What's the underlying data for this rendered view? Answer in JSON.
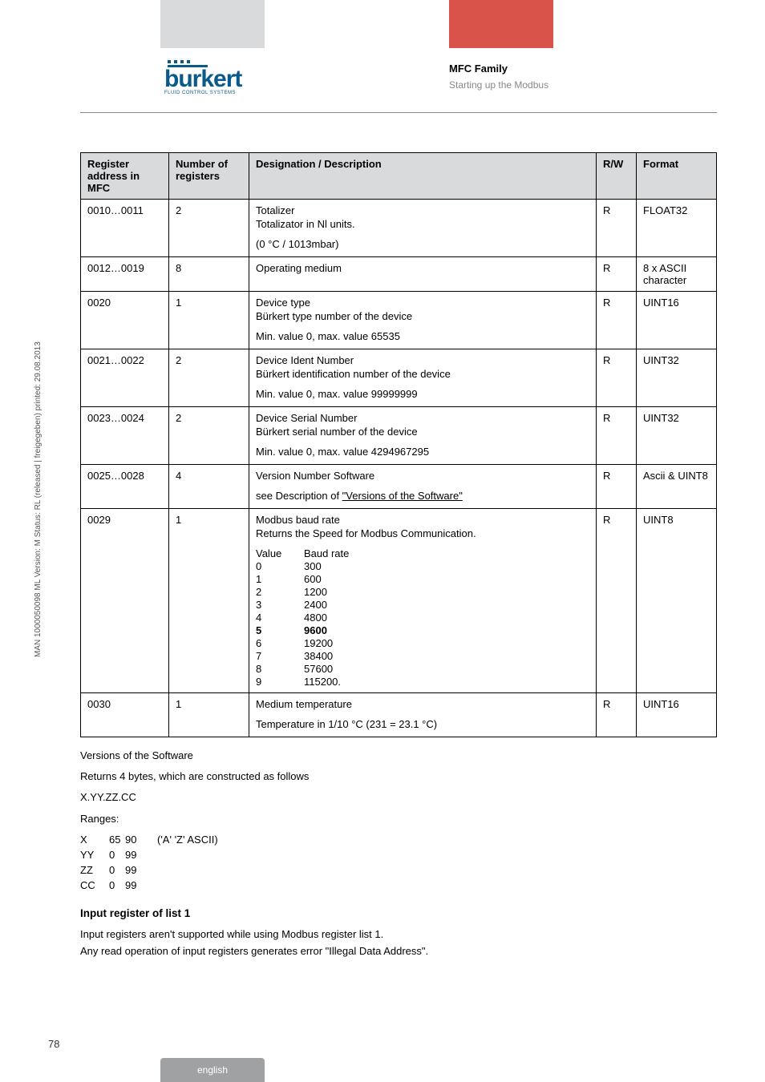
{
  "header": {
    "logo_text": "burkert",
    "logo_sub": "FLUID CONTROL SYSTEMS",
    "title": "MFC Family",
    "subtitle": "Starting up the Modbus"
  },
  "table": {
    "columns": [
      "Register address in MFC",
      "Number of registers",
      "Designation / Description",
      "R/W",
      "Format"
    ],
    "rows": [
      {
        "addr": "0010…0011",
        "num": "2",
        "desc_lines": [
          "Totalizer",
          "Totalizator in Nl units."
        ],
        "desc_extra": "(0 °C / 1013mbar)",
        "rw": "R",
        "fmt": "FLOAT32"
      },
      {
        "addr": "0012…0019",
        "num": "8",
        "desc_lines": [
          "Operating medium"
        ],
        "rw": "R",
        "fmt": "8 x ASCII character"
      },
      {
        "addr": "0020",
        "num": "1",
        "desc_lines": [
          "Device type",
          "Bürkert type number of the device"
        ],
        "desc_extra": "Min. value 0, max. value 65535",
        "rw": "R",
        "fmt": "UINT16"
      },
      {
        "addr": "0021…0022",
        "num": "2",
        "desc_lines": [
          "Device Ident Number",
          "Bürkert identification number of the device"
        ],
        "desc_extra": "Min. value 0, max. value 99999999",
        "rw": "R",
        "fmt": "UINT32"
      },
      {
        "addr": "0023…0024",
        "num": "2",
        "desc_lines": [
          "Device Serial Number",
          "Bürkert serial number of the device"
        ],
        "desc_extra": "Min. value 0, max. value 4294967295",
        "rw": "R",
        "fmt": "UINT32"
      },
      {
        "addr": "0025…0028",
        "num": "4",
        "desc_lines": [
          "Version Number Software"
        ],
        "desc_link_prefix": "see Description of ",
        "desc_link": "\"Versions of the Software\"",
        "rw": "R",
        "fmt": "Ascii & UINT8"
      },
      {
        "addr": "0029",
        "num": "1",
        "desc_lines": [
          "Modbus baud rate",
          "Returns the Speed for Modbus Communication."
        ],
        "baud_header": [
          "Value",
          "Baud rate"
        ],
        "baud_rows": [
          [
            "0",
            "300"
          ],
          [
            "1",
            "600"
          ],
          [
            "2",
            "1200"
          ],
          [
            "3",
            "2400"
          ],
          [
            "4",
            "4800"
          ],
          [
            "5",
            "9600"
          ],
          [
            "6",
            "19200"
          ],
          [
            "7",
            "38400"
          ],
          [
            "8",
            "57600"
          ],
          [
            "9",
            "115200."
          ]
        ],
        "baud_bold_index": 5,
        "rw": "R",
        "fmt": "UINT8"
      },
      {
        "addr": "0030",
        "num": "1",
        "desc_lines": [
          "Medium temperature"
        ],
        "desc_extra": "Temperature in 1/10 °C (231 = 23.1 °C)",
        "rw": "R",
        "fmt": "UINT16"
      }
    ]
  },
  "after": {
    "versions_title": "Versions of the Software",
    "versions_line": "Returns 4 bytes, which are constructed as follows",
    "pattern": "X.YY.ZZ.CC",
    "ranges_label": "Ranges:",
    "ranges": [
      [
        "X",
        "65",
        "90",
        "('A'   'Z' ASCII)"
      ],
      [
        "YY",
        "0",
        "99",
        ""
      ],
      [
        "ZZ",
        "0",
        "99",
        ""
      ],
      [
        "CC",
        "0",
        "99",
        ""
      ]
    ],
    "input_heading": "Input register of list 1",
    "input_lines": [
      "Input registers aren't supported while using Modbus register list 1.",
      "Any read operation of input registers generates error \"Illegal Data Address\"."
    ]
  },
  "side_text": "MAN 1000050098 ML Version: M Status: RL (released | freigegeben) printed: 29.08.2013",
  "page_number": "78",
  "footer_tab": "english"
}
